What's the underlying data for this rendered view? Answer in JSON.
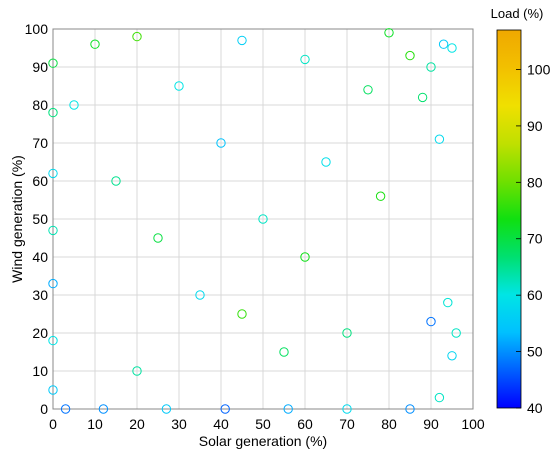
{
  "chart_data": {
    "type": "scatter",
    "title": "",
    "xlabel": "Solar generation (%)",
    "ylabel": "Wind generation (%)",
    "xlim": [
      0,
      100
    ],
    "ylim": [
      0,
      100
    ],
    "xticks": [
      "0",
      "10",
      "20",
      "30",
      "40",
      "50",
      "60",
      "70",
      "80",
      "90",
      "100"
    ],
    "yticks": [
      "0",
      "10",
      "20",
      "30",
      "40",
      "50",
      "60",
      "70",
      "80",
      "90",
      "100"
    ],
    "grid": true,
    "marker": "open-circle",
    "colorbar": {
      "label": "Load (%)",
      "range": [
        40,
        107
      ],
      "ticks": [
        "40",
        "50",
        "60",
        "70",
        "80",
        "90",
        "100"
      ],
      "colormap": [
        "#0000ff",
        "#0060ff",
        "#00c0ff",
        "#00e5e5",
        "#00e070",
        "#10e010",
        "#70e000",
        "#c0e000",
        "#f0e000",
        "#f2c000",
        "#f0a800"
      ]
    },
    "point_count_note": "several thousand points; representative sample listed",
    "points": [
      {
        "x": 0,
        "y": 5,
        "load": 55
      },
      {
        "x": 0,
        "y": 18,
        "load": 60
      },
      {
        "x": 0,
        "y": 33,
        "load": 52
      },
      {
        "x": 0,
        "y": 47,
        "load": 63
      },
      {
        "x": 0,
        "y": 62,
        "load": 58
      },
      {
        "x": 0,
        "y": 78,
        "load": 66
      },
      {
        "x": 0,
        "y": 91,
        "load": 70
      },
      {
        "x": 3,
        "y": 0,
        "load": 48
      },
      {
        "x": 12,
        "y": 0,
        "load": 50
      },
      {
        "x": 27,
        "y": 0,
        "load": 55
      },
      {
        "x": 41,
        "y": 0,
        "load": 47
      },
      {
        "x": 56,
        "y": 0,
        "load": 52
      },
      {
        "x": 70,
        "y": 0,
        "load": 58
      },
      {
        "x": 85,
        "y": 0,
        "load": 50
      },
      {
        "x": 92,
        "y": 3,
        "load": 62
      },
      {
        "x": 93,
        "y": 96,
        "load": 55
      },
      {
        "x": 95,
        "y": 95,
        "load": 60
      },
      {
        "x": 90,
        "y": 90,
        "load": 64
      },
      {
        "x": 88,
        "y": 82,
        "load": 67
      },
      {
        "x": 80,
        "y": 99,
        "load": 72
      },
      {
        "x": 85,
        "y": 93,
        "load": 75
      },
      {
        "x": 92,
        "y": 71,
        "load": 58
      },
      {
        "x": 96,
        "y": 20,
        "load": 62
      },
      {
        "x": 95,
        "y": 14,
        "load": 57
      },
      {
        "x": 94,
        "y": 28,
        "load": 61
      },
      {
        "x": 90,
        "y": 23,
        "load": 48
      },
      {
        "x": 78,
        "y": 56,
        "load": 74
      },
      {
        "x": 75,
        "y": 84,
        "load": 68
      },
      {
        "x": 60,
        "y": 92,
        "load": 62
      },
      {
        "x": 45,
        "y": 97,
        "load": 56
      },
      {
        "x": 20,
        "y": 98,
        "load": 77
      },
      {
        "x": 10,
        "y": 96,
        "load": 72
      },
      {
        "x": 5,
        "y": 80,
        "load": 60
      },
      {
        "x": 15,
        "y": 60,
        "load": 65
      },
      {
        "x": 25,
        "y": 45,
        "load": 70
      },
      {
        "x": 35,
        "y": 30,
        "load": 58
      },
      {
        "x": 50,
        "y": 50,
        "load": 62
      },
      {
        "x": 60,
        "y": 40,
        "load": 73
      },
      {
        "x": 70,
        "y": 20,
        "load": 66
      },
      {
        "x": 40,
        "y": 70,
        "load": 54
      },
      {
        "x": 30,
        "y": 85,
        "load": 60
      },
      {
        "x": 55,
        "y": 15,
        "load": 68
      },
      {
        "x": 65,
        "y": 65,
        "load": 59
      },
      {
        "x": 45,
        "y": 25,
        "load": 76
      },
      {
        "x": 20,
        "y": 10,
        "load": 64
      }
    ]
  }
}
